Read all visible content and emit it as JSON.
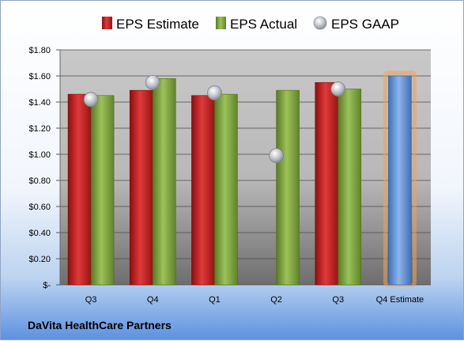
{
  "chart_data": {
    "type": "bar",
    "categories": [
      "Q3",
      "Q4",
      "Q1",
      "Q2",
      "Q3",
      "Q4 Estimate"
    ],
    "series": [
      {
        "name": "EPS Estimate",
        "kind": "bar",
        "color": "#cc1f1f",
        "values": [
          1.46,
          1.49,
          1.45,
          null,
          1.55,
          null
        ]
      },
      {
        "name": "EPS Actual",
        "kind": "bar",
        "color": "#7ea63c",
        "values": [
          1.45,
          1.58,
          1.46,
          1.49,
          1.5,
          null
        ]
      },
      {
        "name": "EPS GAAP",
        "kind": "marker",
        "color": "#c0c4cc",
        "values": [
          1.42,
          1.55,
          1.47,
          0.99,
          1.5,
          null
        ]
      },
      {
        "kind": "bar",
        "color": "#5b8fd6",
        "highlight": "#f4a24a",
        "values": [
          null,
          null,
          null,
          null,
          null,
          1.6
        ]
      }
    ],
    "y_ticks": [
      "$-",
      "$0.20",
      "$0.40",
      "$0.60",
      "$0.80",
      "$1.00",
      "$1.20",
      "$1.40",
      "$1.60",
      "$1.80"
    ],
    "ylim": [
      0,
      1.8
    ],
    "grid": true,
    "legend_position": "top",
    "title": "",
    "xlabel": "",
    "ylabel": ""
  },
  "footer": {
    "company": "DaVita HealthCare Partners"
  }
}
